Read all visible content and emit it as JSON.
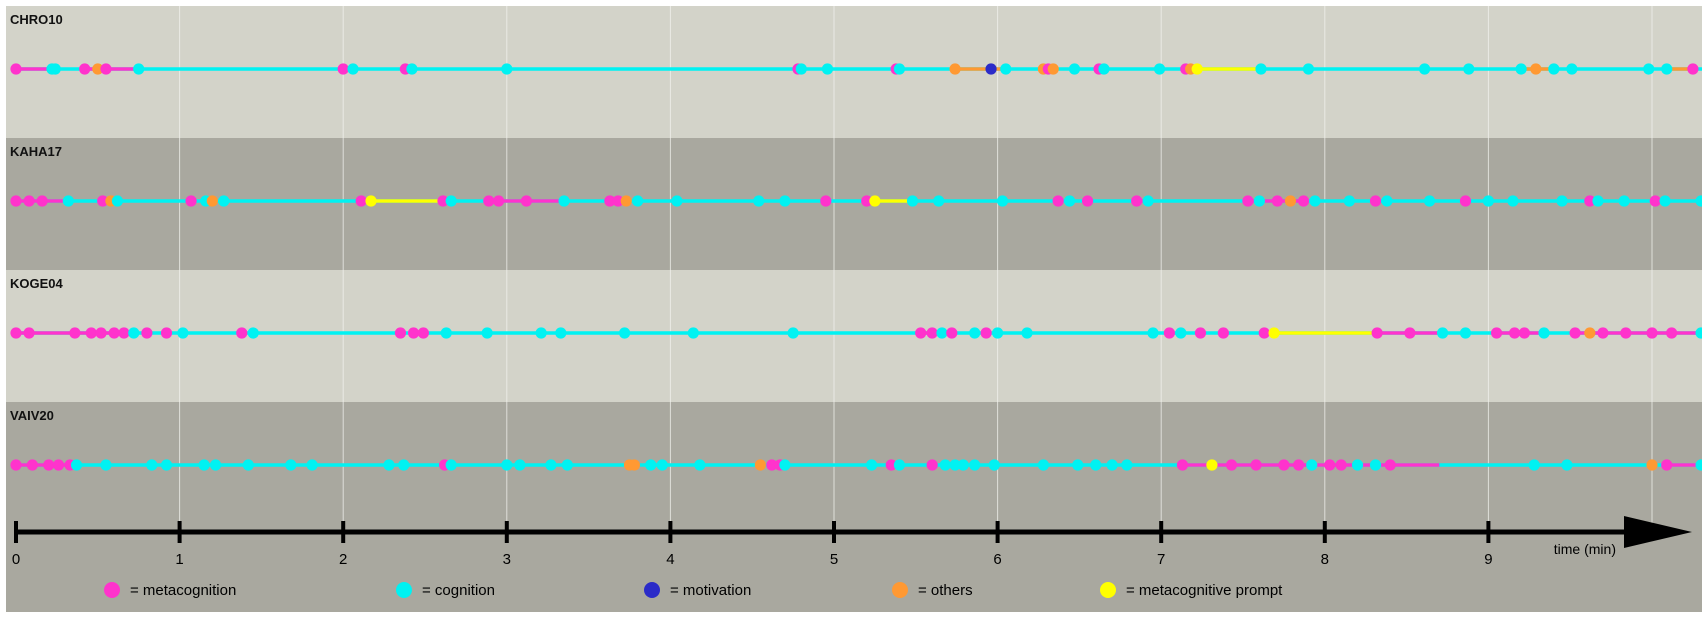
{
  "colors": {
    "metacognition": "#ff33cc",
    "cognition": "#00f2f2",
    "motivation": "#2b2bc8",
    "others": "#ff9933",
    "metacognitive_prompt": "#ffff00",
    "band_light": "#d3d3c9",
    "band_dark": "#a9a89f",
    "axis": "#000000"
  },
  "chart_data": {
    "type": "timeline",
    "xlim": [
      0,
      10.35
    ],
    "x_ticks": [
      "0",
      "1",
      "2",
      "3",
      "4",
      "5",
      "6",
      "7",
      "8",
      "9"
    ],
    "x_tick_values": [
      0,
      1,
      2,
      3,
      4,
      5,
      6,
      7,
      8,
      9
    ],
    "xlabel": "time (min)",
    "grid": true,
    "legend": [
      {
        "key": "metacognition",
        "label": "= metacognition"
      },
      {
        "key": "cognition",
        "label": "= cognition"
      },
      {
        "key": "motivation",
        "label": "= motivation"
      },
      {
        "key": "others",
        "label": "= others"
      },
      {
        "key": "metacognitive_prompt",
        "label": "= metacognitive prompt"
      }
    ],
    "series": [
      {
        "name": "CHRO10",
        "events": [
          [
            0.0,
            "metacognition"
          ],
          [
            0.22,
            "cognition"
          ],
          [
            0.24,
            "cognition"
          ],
          [
            0.42,
            "metacognition"
          ],
          [
            0.5,
            "others"
          ],
          [
            0.55,
            "metacognition"
          ],
          [
            0.75,
            "cognition"
          ],
          [
            2.0,
            "metacognition"
          ],
          [
            2.06,
            "cognition"
          ],
          [
            2.38,
            "metacognition"
          ],
          [
            2.42,
            "cognition"
          ],
          [
            3.0,
            "cognition"
          ],
          [
            4.78,
            "metacognition"
          ],
          [
            4.8,
            "cognition"
          ],
          [
            4.96,
            "cognition"
          ],
          [
            5.38,
            "metacognition"
          ],
          [
            5.4,
            "cognition"
          ],
          [
            5.74,
            "others"
          ],
          [
            5.96,
            "motivation"
          ],
          [
            6.05,
            "cognition"
          ],
          [
            6.28,
            "others"
          ],
          [
            6.31,
            "metacognition"
          ],
          [
            6.34,
            "others"
          ],
          [
            6.47,
            "cognition"
          ],
          [
            6.62,
            "metacognition"
          ],
          [
            6.65,
            "cognition"
          ],
          [
            6.99,
            "cognition"
          ],
          [
            7.15,
            "metacognition"
          ],
          [
            7.18,
            "others"
          ],
          [
            7.22,
            "metacognitive_prompt"
          ],
          [
            7.61,
            "cognition"
          ],
          [
            7.9,
            "cognition"
          ],
          [
            8.61,
            "cognition"
          ],
          [
            8.88,
            "cognition"
          ],
          [
            9.2,
            "cognition"
          ],
          [
            9.29,
            "others"
          ],
          [
            9.4,
            "cognition"
          ],
          [
            9.51,
            "cognition"
          ],
          [
            9.98,
            "cognition"
          ],
          [
            10.09,
            "cognition"
          ],
          [
            10.25,
            "metacognition"
          ]
        ],
        "segments": [
          {
            "from": 0.0,
            "to": 0.22,
            "cat": "metacognition"
          },
          {
            "from": 0.42,
            "to": 0.75,
            "cat": "metacognition"
          },
          {
            "from": 5.74,
            "to": 6.02,
            "cat": "others"
          },
          {
            "from": 6.28,
            "to": 6.34,
            "cat": "others"
          },
          {
            "from": 6.62,
            "to": 6.65,
            "cat": "metacognition"
          },
          {
            "from": 7.22,
            "to": 7.61,
            "cat": "metacognitive_prompt"
          },
          {
            "from": 9.2,
            "to": 9.4,
            "cat": "others"
          },
          {
            "from": 10.09,
            "to": 10.25,
            "cat": "others"
          }
        ]
      },
      {
        "name": "KAHA17",
        "events": [
          [
            0.0,
            "metacognition"
          ],
          [
            0.08,
            "metacognition"
          ],
          [
            0.16,
            "metacognition"
          ],
          [
            0.32,
            "cognition"
          ],
          [
            0.53,
            "metacognition"
          ],
          [
            0.58,
            "others"
          ],
          [
            0.62,
            "cognition"
          ],
          [
            1.07,
            "metacognition"
          ],
          [
            1.16,
            "cognition"
          ],
          [
            1.2,
            "others"
          ],
          [
            1.27,
            "cognition"
          ],
          [
            2.11,
            "metacognition"
          ],
          [
            2.17,
            "metacognitive_prompt"
          ],
          [
            2.61,
            "metacognition"
          ],
          [
            2.66,
            "cognition"
          ],
          [
            2.89,
            "metacognition"
          ],
          [
            2.95,
            "metacognition"
          ],
          [
            3.12,
            "metacognition"
          ],
          [
            3.35,
            "cognition"
          ],
          [
            3.63,
            "metacognition"
          ],
          [
            3.68,
            "metacognition"
          ],
          [
            3.73,
            "others"
          ],
          [
            3.8,
            "cognition"
          ],
          [
            4.04,
            "cognition"
          ],
          [
            4.54,
            "cognition"
          ],
          [
            4.7,
            "cognition"
          ],
          [
            4.95,
            "metacognition"
          ],
          [
            5.2,
            "metacognition"
          ],
          [
            5.25,
            "metacognitive_prompt"
          ],
          [
            5.48,
            "cognition"
          ],
          [
            5.64,
            "cognition"
          ],
          [
            6.03,
            "cognition"
          ],
          [
            6.37,
            "metacognition"
          ],
          [
            6.44,
            "cognition"
          ],
          [
            6.55,
            "metacognition"
          ],
          [
            6.85,
            "metacognition"
          ],
          [
            6.92,
            "cognition"
          ],
          [
            7.53,
            "metacognition"
          ],
          [
            7.6,
            "cognition"
          ],
          [
            7.71,
            "metacognition"
          ],
          [
            7.79,
            "others"
          ],
          [
            7.87,
            "metacognition"
          ],
          [
            7.94,
            "cognition"
          ],
          [
            8.15,
            "cognition"
          ],
          [
            8.31,
            "metacognition"
          ],
          [
            8.38,
            "cognition"
          ],
          [
            8.64,
            "cognition"
          ],
          [
            8.86,
            "metacognition"
          ],
          [
            9.0,
            "cognition"
          ],
          [
            9.15,
            "cognition"
          ],
          [
            9.45,
            "cognition"
          ],
          [
            9.62,
            "metacognition"
          ],
          [
            9.67,
            "cognition"
          ],
          [
            9.83,
            "cognition"
          ],
          [
            10.02,
            "metacognition"
          ],
          [
            10.08,
            "cognition"
          ],
          [
            10.3,
            "cognition"
          ]
        ],
        "segments": [
          {
            "from": 0.0,
            "to": 0.32,
            "cat": "metacognition"
          },
          {
            "from": 2.17,
            "to": 2.61,
            "cat": "metacognitive_prompt"
          },
          {
            "from": 2.89,
            "to": 3.35,
            "cat": "metacognition"
          },
          {
            "from": 3.63,
            "to": 3.73,
            "cat": "metacognition"
          },
          {
            "from": 5.25,
            "to": 5.48,
            "cat": "metacognitive_prompt"
          },
          {
            "from": 6.85,
            "to": 6.92,
            "cat": "metacognition"
          },
          {
            "from": 7.53,
            "to": 7.87,
            "cat": "metacognition"
          },
          {
            "from": 10.02,
            "to": 10.08,
            "cat": "metacognition"
          }
        ]
      },
      {
        "name": "KOGE04",
        "events": [
          [
            0.0,
            "metacognition"
          ],
          [
            0.08,
            "metacognition"
          ],
          [
            0.36,
            "metacognition"
          ],
          [
            0.46,
            "metacognition"
          ],
          [
            0.52,
            "metacognition"
          ],
          [
            0.6,
            "metacognition"
          ],
          [
            0.66,
            "metacognition"
          ],
          [
            0.72,
            "cognition"
          ],
          [
            0.8,
            "metacognition"
          ],
          [
            0.92,
            "metacognition"
          ],
          [
            1.02,
            "cognition"
          ],
          [
            1.38,
            "metacognition"
          ],
          [
            1.45,
            "cognition"
          ],
          [
            2.35,
            "metacognition"
          ],
          [
            2.43,
            "metacognition"
          ],
          [
            2.49,
            "metacognition"
          ],
          [
            2.63,
            "cognition"
          ],
          [
            2.88,
            "cognition"
          ],
          [
            3.21,
            "cognition"
          ],
          [
            3.33,
            "cognition"
          ],
          [
            3.72,
            "cognition"
          ],
          [
            4.14,
            "cognition"
          ],
          [
            4.75,
            "cognition"
          ],
          [
            5.53,
            "metacognition"
          ],
          [
            5.6,
            "metacognition"
          ],
          [
            5.66,
            "cognition"
          ],
          [
            5.72,
            "metacognition"
          ],
          [
            5.86,
            "cognition"
          ],
          [
            5.93,
            "metacognition"
          ],
          [
            6.0,
            "cognition"
          ],
          [
            6.18,
            "cognition"
          ],
          [
            6.95,
            "cognition"
          ],
          [
            7.05,
            "metacognition"
          ],
          [
            7.12,
            "cognition"
          ],
          [
            7.24,
            "metacognition"
          ],
          [
            7.38,
            "metacognition"
          ],
          [
            7.63,
            "metacognition"
          ],
          [
            7.69,
            "metacognitive_prompt"
          ],
          [
            8.32,
            "metacognition"
          ],
          [
            8.52,
            "metacognition"
          ],
          [
            8.72,
            "cognition"
          ],
          [
            8.86,
            "cognition"
          ],
          [
            9.05,
            "metacognition"
          ],
          [
            9.16,
            "metacognition"
          ],
          [
            9.22,
            "metacognition"
          ],
          [
            9.34,
            "cognition"
          ],
          [
            9.53,
            "metacognition"
          ],
          [
            9.62,
            "others"
          ],
          [
            9.7,
            "metacognition"
          ],
          [
            9.84,
            "metacognition"
          ],
          [
            10.0,
            "metacognition"
          ],
          [
            10.12,
            "metacognition"
          ],
          [
            10.3,
            "cognition"
          ]
        ],
        "segments": [
          {
            "from": 0.0,
            "to": 0.72,
            "cat": "metacognition"
          },
          {
            "from": 5.53,
            "to": 5.66,
            "cat": "metacognition"
          },
          {
            "from": 7.69,
            "to": 8.32,
            "cat": "metacognitive_prompt"
          },
          {
            "from": 8.32,
            "to": 8.72,
            "cat": "metacognition"
          },
          {
            "from": 9.05,
            "to": 9.34,
            "cat": "metacognition"
          },
          {
            "from": 9.53,
            "to": 10.3,
            "cat": "metacognition"
          }
        ]
      },
      {
        "name": "VAIV20",
        "events": [
          [
            0.0,
            "metacognition"
          ],
          [
            0.1,
            "metacognition"
          ],
          [
            0.2,
            "metacognition"
          ],
          [
            0.26,
            "metacognition"
          ],
          [
            0.33,
            "metacognition"
          ],
          [
            0.37,
            "cognition"
          ],
          [
            0.55,
            "cognition"
          ],
          [
            0.83,
            "cognition"
          ],
          [
            0.92,
            "cognition"
          ],
          [
            1.15,
            "cognition"
          ],
          [
            1.22,
            "cognition"
          ],
          [
            1.42,
            "cognition"
          ],
          [
            1.68,
            "cognition"
          ],
          [
            1.81,
            "cognition"
          ],
          [
            2.28,
            "cognition"
          ],
          [
            2.37,
            "cognition"
          ],
          [
            2.62,
            "metacognition"
          ],
          [
            2.66,
            "cognition"
          ],
          [
            3.0,
            "cognition"
          ],
          [
            3.08,
            "cognition"
          ],
          [
            3.27,
            "cognition"
          ],
          [
            3.37,
            "cognition"
          ],
          [
            3.75,
            "others"
          ],
          [
            3.78,
            "others"
          ],
          [
            3.88,
            "cognition"
          ],
          [
            3.95,
            "cognition"
          ],
          [
            4.18,
            "cognition"
          ],
          [
            4.55,
            "others"
          ],
          [
            4.62,
            "metacognition"
          ],
          [
            4.67,
            "metacognition"
          ],
          [
            4.7,
            "cognition"
          ],
          [
            5.23,
            "cognition"
          ],
          [
            5.35,
            "metacognition"
          ],
          [
            5.4,
            "cognition"
          ],
          [
            5.6,
            "metacognition"
          ],
          [
            5.68,
            "cognition"
          ],
          [
            5.74,
            "cognition"
          ],
          [
            5.79,
            "cognition"
          ],
          [
            5.86,
            "cognition"
          ],
          [
            5.98,
            "cognition"
          ],
          [
            6.28,
            "cognition"
          ],
          [
            6.49,
            "cognition"
          ],
          [
            6.6,
            "cognition"
          ],
          [
            6.7,
            "cognition"
          ],
          [
            6.79,
            "cognition"
          ],
          [
            7.13,
            "metacognition"
          ],
          [
            7.31,
            "metacognitive_prompt"
          ],
          [
            7.43,
            "metacognition"
          ],
          [
            7.58,
            "metacognition"
          ],
          [
            7.75,
            "metacognition"
          ],
          [
            7.84,
            "metacognition"
          ],
          [
            7.92,
            "cognition"
          ],
          [
            8.03,
            "metacognition"
          ],
          [
            8.1,
            "metacognition"
          ],
          [
            8.2,
            "cognition"
          ],
          [
            8.31,
            "cognition"
          ],
          [
            8.4,
            "metacognition"
          ],
          [
            9.28,
            "cognition"
          ],
          [
            9.48,
            "cognition"
          ],
          [
            10.0,
            "others"
          ],
          [
            10.09,
            "metacognition"
          ],
          [
            10.3,
            "cognition"
          ]
        ],
        "segments": [
          {
            "from": 0.0,
            "to": 0.37,
            "cat": "metacognition"
          },
          {
            "from": 3.75,
            "to": 3.78,
            "cat": "others"
          },
          {
            "from": 7.13,
            "to": 8.03,
            "cat": "metacognition"
          },
          {
            "from": 8.03,
            "to": 8.4,
            "cat": "metacognition"
          },
          {
            "from": 8.4,
            "to": 8.7,
            "cat": "metacognition"
          },
          {
            "from": 10.09,
            "to": 10.3,
            "cat": "metacognition"
          }
        ]
      }
    ]
  }
}
